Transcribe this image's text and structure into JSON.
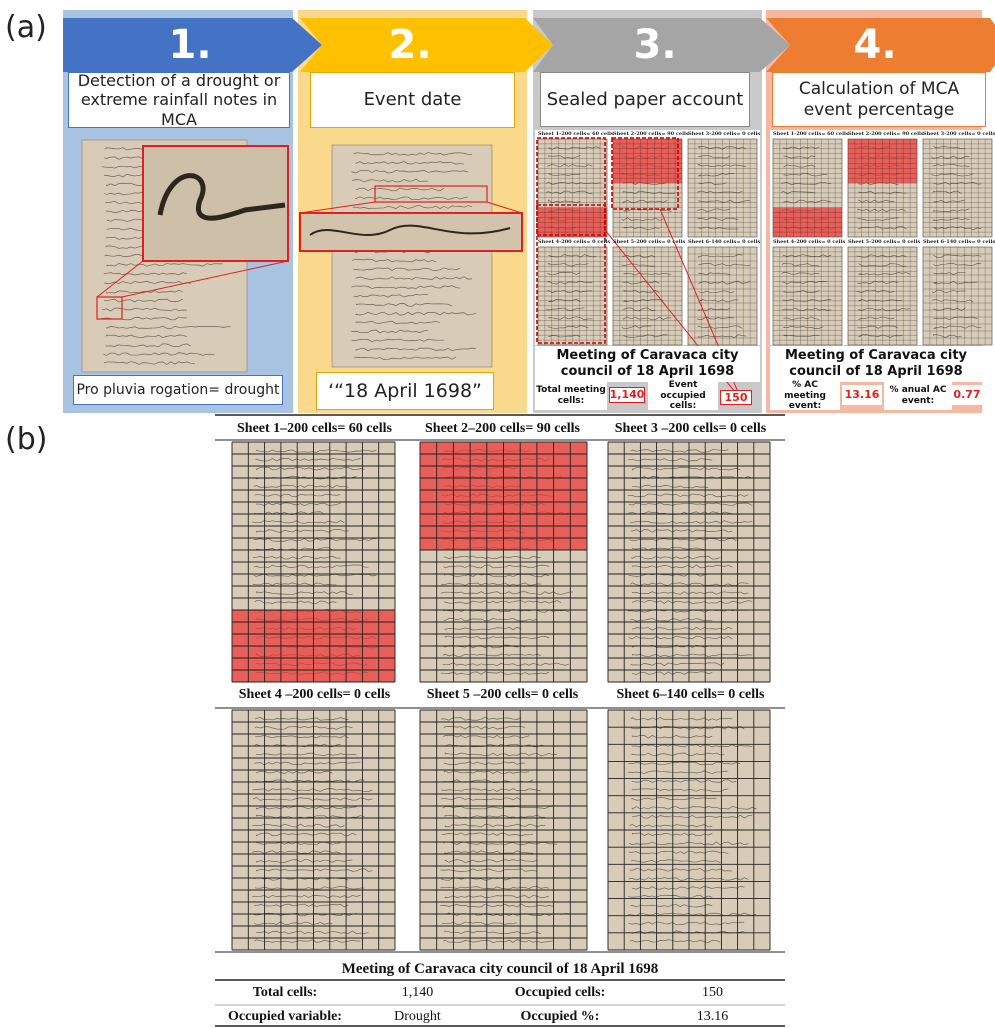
{
  "panel_a": {
    "label": "(a)",
    "steps": [
      {
        "number": "1.",
        "title": "Detection of a drought or extreme rainfall notes in MCA",
        "caption": "Pro pluvia rogation= drought"
      },
      {
        "number": "2.",
        "title": "Event date",
        "caption": "‘“18 April 1698”"
      },
      {
        "number": "3.",
        "title": "Sealed paper account",
        "sheet_labels": [
          "Sheet 1-200 cells= 60 cells",
          "Sheet 2-200 cells= 90 cells",
          "Sheet 3-200 cells= 0 cells",
          "Sheet 4-200 cells= 0 cells",
          "Sheet 5-200 cells= 0 cells",
          "Sheet 6-140 cells= 0 cells"
        ],
        "summary": {
          "title": "Meeting of Caravaca city council of 18 April 1698",
          "total_label": "Total meeting cells:",
          "total_value": "1,140",
          "occupied_label": "Event occupied cells:",
          "occupied_value": "150"
        }
      },
      {
        "number": "4.",
        "title": "Calculation of MCA event percentage",
        "sheet_labels": [
          "Sheet 1-200 cells= 60 cells",
          "Sheet 2-200 cells= 90 cells",
          "Sheet 3-200 cells= 0 cells",
          "Sheet 4-200 cells= 0 cells",
          "Sheet 5-200 cells= 0 cells",
          "Sheet 6-140 cells= 0 cells"
        ],
        "summary": {
          "title": "Meeting of Caravaca city council of 18 April 1698",
          "meeting_label": "% AC meeting event:",
          "meeting_value": "13.16",
          "annual_label": "% anual AC event:",
          "annual_value": "0.77"
        }
      }
    ]
  },
  "panel_b": {
    "label": "(b)",
    "sheets": [
      "Sheet 1–200 cells= 60 cells",
      "Sheet 2–200 cells= 90 cells",
      "Sheet 3 –200 cells= 0 cells",
      "Sheet 4 –200 cells= 0 cells",
      "Sheet 5 –200 cells= 0 cells",
      "Sheet 6–140 cells= 0 cells"
    ],
    "table": {
      "title": "Meeting of Caravaca city council of 18 April 1698",
      "rows": [
        [
          "Total cells:",
          "1,140",
          "Occupied cells:",
          "150"
        ],
        [
          "Occupied variable:",
          "Drought",
          "Occupied %:",
          "13.16"
        ]
      ]
    }
  }
}
